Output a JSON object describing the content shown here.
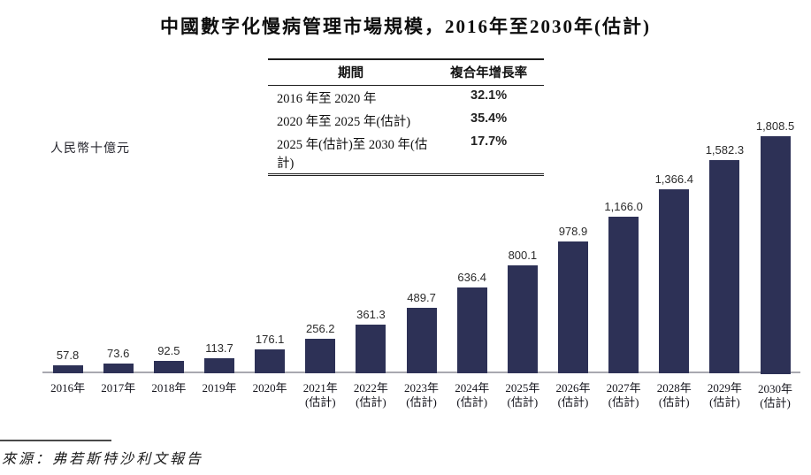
{
  "page": {
    "title": "中國數字化慢病管理市場規模，2016年至2030年(估計)",
    "y_axis_label": "人民幣十億元",
    "source": "來源：弗若斯特沙利文報告"
  },
  "cagr_table": {
    "period_header": "期間",
    "cagr_header": "複合年增長率",
    "rows": [
      {
        "period": "2016 年至 2020 年",
        "cagr": "32.1%"
      },
      {
        "period": "2020 年至 2025 年(估計)",
        "cagr": "35.4%"
      },
      {
        "period": "2025 年(估計)至 2030 年(估計)",
        "cagr": "17.7%"
      }
    ]
  },
  "chart_data": {
    "type": "bar",
    "title": "中國數字化慢病管理市場規模，2016年至2030年(估計)",
    "ylabel": "人民幣十億元",
    "categories": [
      "2016年",
      "2017年",
      "2018年",
      "2019年",
      "2020年",
      "2021年",
      "2022年",
      "2023年",
      "2024年",
      "2025年",
      "2026年",
      "2027年",
      "2028年",
      "2029年",
      "2030年"
    ],
    "estimated": [
      false,
      false,
      false,
      false,
      false,
      true,
      true,
      true,
      true,
      true,
      true,
      true,
      true,
      true,
      true
    ],
    "estimate_suffix": "(估計)",
    "values": [
      57.8,
      73.6,
      92.5,
      113.7,
      176.1,
      256.2,
      361.3,
      489.7,
      636.4,
      800.1,
      978.9,
      1166.0,
      1366.4,
      1582.3,
      1808.5
    ],
    "value_labels": [
      "57.8",
      "73.6",
      "92.5",
      "113.7",
      "176.1",
      "256.2",
      "361.3",
      "489.7",
      "636.4",
      "800.1",
      "978.9",
      "1,166.0",
      "1,366.4",
      "1,582.3",
      "1,808.5"
    ],
    "bar_color": "#2d3156",
    "ylim": [
      0,
      1900
    ],
    "grid": false,
    "legend": null
  }
}
